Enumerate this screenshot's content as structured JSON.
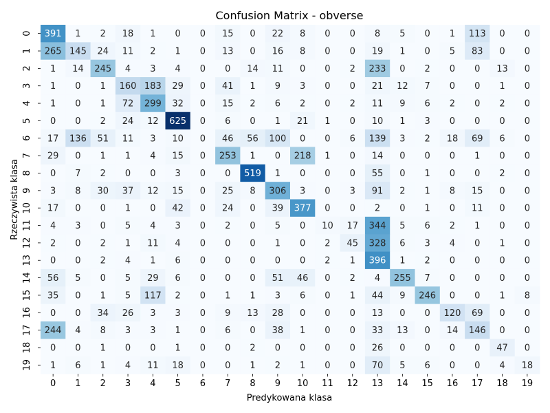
{
  "chart_data": {
    "type": "heatmap",
    "title": "Confusion Matrix - obverse",
    "xlabel": "Predykowana klasa",
    "ylabel": "Rzeczywista klasa",
    "x_labels": [
      "0",
      "1",
      "2",
      "3",
      "4",
      "5",
      "6",
      "7",
      "8",
      "9",
      "10",
      "11",
      "12",
      "13",
      "14",
      "15",
      "16",
      "17",
      "18",
      "19"
    ],
    "y_labels": [
      "0",
      "1",
      "2",
      "3",
      "4",
      "5",
      "6",
      "7",
      "8",
      "9",
      "10",
      "11",
      "12",
      "13",
      "14",
      "15",
      "16",
      "17",
      "18",
      "19"
    ],
    "colormap": "Blues",
    "value_range": [
      0,
      625
    ],
    "colorbar": false,
    "matrix": [
      [
        391,
        1,
        2,
        18,
        1,
        0,
        0,
        15,
        0,
        22,
        8,
        0,
        0,
        8,
        5,
        0,
        1,
        113,
        0,
        0
      ],
      [
        265,
        145,
        24,
        11,
        2,
        1,
        0,
        13,
        0,
        16,
        8,
        0,
        0,
        19,
        1,
        0,
        5,
        83,
        0,
        0
      ],
      [
        1,
        14,
        245,
        4,
        3,
        4,
        0,
        0,
        14,
        11,
        0,
        0,
        2,
        233,
        0,
        2,
        0,
        0,
        13,
        0
      ],
      [
        1,
        0,
        1,
        160,
        183,
        29,
        0,
        41,
        1,
        9,
        3,
        0,
        0,
        21,
        12,
        7,
        0,
        0,
        1,
        0
      ],
      [
        1,
        0,
        1,
        72,
        299,
        32,
        0,
        15,
        2,
        6,
        2,
        0,
        2,
        11,
        9,
        6,
        2,
        0,
        2,
        0
      ],
      [
        0,
        0,
        2,
        24,
        12,
        625,
        0,
        6,
        0,
        1,
        21,
        1,
        0,
        10,
        1,
        3,
        0,
        0,
        0,
        0
      ],
      [
        17,
        136,
        51,
        11,
        3,
        10,
        0,
        46,
        56,
        100,
        0,
        0,
        6,
        139,
        3,
        2,
        18,
        69,
        6,
        0
      ],
      [
        29,
        0,
        1,
        1,
        4,
        15,
        0,
        253,
        1,
        0,
        218,
        1,
        0,
        14,
        0,
        0,
        0,
        1,
        0,
        0
      ],
      [
        0,
        7,
        2,
        0,
        0,
        3,
        0,
        0,
        519,
        1,
        0,
        0,
        0,
        55,
        0,
        1,
        0,
        0,
        2,
        0
      ],
      [
        3,
        8,
        30,
        37,
        12,
        15,
        0,
        25,
        8,
        306,
        3,
        0,
        3,
        91,
        2,
        1,
        8,
        15,
        0,
        0
      ],
      [
        17,
        0,
        0,
        1,
        0,
        42,
        0,
        24,
        0,
        39,
        377,
        0,
        0,
        2,
        0,
        1,
        0,
        11,
        0,
        0
      ],
      [
        4,
        3,
        0,
        5,
        4,
        3,
        0,
        2,
        0,
        5,
        0,
        10,
        17,
        344,
        5,
        6,
        2,
        1,
        0,
        0
      ],
      [
        2,
        0,
        2,
        1,
        11,
        4,
        0,
        0,
        0,
        1,
        0,
        2,
        45,
        328,
        6,
        3,
        4,
        0,
        1,
        0
      ],
      [
        0,
        0,
        2,
        4,
        1,
        6,
        0,
        0,
        0,
        0,
        0,
        2,
        1,
        396,
        1,
        2,
        0,
        0,
        0,
        0
      ],
      [
        56,
        5,
        0,
        5,
        29,
        6,
        0,
        0,
        0,
        51,
        46,
        0,
        2,
        4,
        255,
        7,
        0,
        0,
        0,
        0
      ],
      [
        35,
        0,
        1,
        5,
        117,
        2,
        0,
        1,
        1,
        3,
        6,
        0,
        1,
        44,
        9,
        246,
        0,
        0,
        1,
        8
      ],
      [
        0,
        0,
        34,
        26,
        3,
        3,
        0,
        9,
        13,
        28,
        0,
        0,
        0,
        13,
        0,
        0,
        120,
        69,
        0,
        0
      ],
      [
        244,
        4,
        8,
        3,
        3,
        1,
        0,
        6,
        0,
        38,
        1,
        0,
        0,
        33,
        13,
        0,
        14,
        146,
        0,
        0
      ],
      [
        0,
        0,
        1,
        0,
        0,
        1,
        0,
        0,
        2,
        0,
        0,
        0,
        0,
        26,
        0,
        0,
        0,
        0,
        47,
        0
      ],
      [
        1,
        6,
        1,
        4,
        11,
        18,
        0,
        0,
        1,
        2,
        1,
        0,
        0,
        70,
        5,
        6,
        0,
        0,
        4,
        18
      ]
    ]
  }
}
